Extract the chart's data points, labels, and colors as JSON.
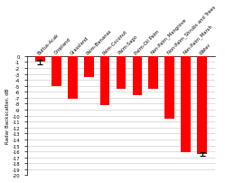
{
  "categories": [
    "Bultus-Acak",
    "Cropland",
    "Grassland",
    "Palm-Bananas",
    "Palm-Coconut",
    "Palm-Sago",
    "Palm-Oil Palm",
    "Non-Palm_Mangrove",
    "Non-Palm_Shrubs and Trees",
    "Non-Palm_Marsh",
    "Water"
  ],
  "values": [
    -1.0,
    -5.0,
    -7.2,
    -3.5,
    -8.2,
    -5.5,
    -6.5,
    -5.5,
    -10.5,
    -16.2,
    -16.5
  ],
  "errors_pos": [
    0.4,
    0.0,
    0.0,
    0.0,
    0.0,
    0.0,
    0.0,
    0.0,
    0.0,
    0.0,
    0.3
  ],
  "bar_color": "#ff0000",
  "ylabel": "Radar Backscatter, dB",
  "ylim": [
    -20,
    0
  ],
  "background_color": "#ffffff",
  "grid_color": "#d0d0d0",
  "bar_width": 0.6
}
